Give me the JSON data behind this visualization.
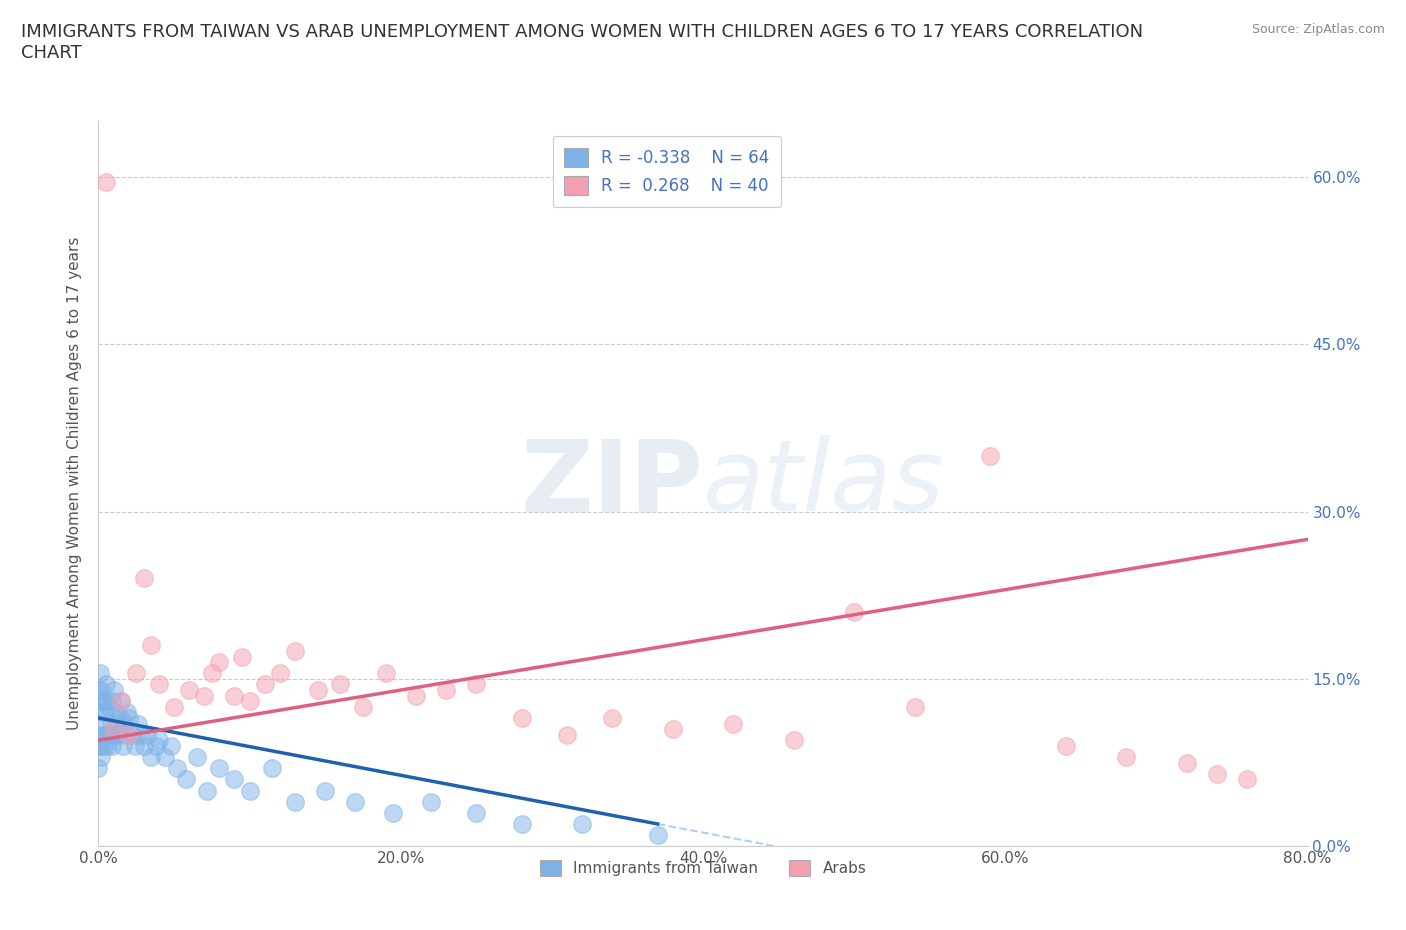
{
  "title": "IMMIGRANTS FROM TAIWAN VS ARAB UNEMPLOYMENT AMONG WOMEN WITH CHILDREN AGES 6 TO 17 YEARS CORRELATION\nCHART",
  "source": "Source: ZipAtlas.com",
  "ylabel": "Unemployment Among Women with Children Ages 6 to 17 years",
  "xlim": [
    0.0,
    0.8
  ],
  "ylim": [
    0.0,
    0.65
  ],
  "yticks": [
    0.0,
    0.15,
    0.3,
    0.45,
    0.6
  ],
  "xticks": [
    0.0,
    0.2,
    0.4,
    0.6,
    0.8
  ],
  "xtick_labels": [
    "0.0%",
    "20.0%",
    "40.0%",
    "60.0%",
    "80.0%"
  ],
  "right_ytick_labels": [
    "0.0%",
    "15.0%",
    "30.0%",
    "45.0%",
    "60.0%"
  ],
  "taiwan_color": "#7fb3e8",
  "taiwan_line_color": "#2060b0",
  "arab_color": "#f4a0b0",
  "arab_line_color": "#e06080",
  "taiwan_R": -0.338,
  "taiwan_N": 64,
  "arab_R": 0.268,
  "arab_N": 40,
  "grid_color": "#cccccc",
  "watermark_zip": "ZIP",
  "watermark_atlas": "atlas",
  "taiwan_points_x": [
    0.0,
    0.0,
    0.0,
    0.0,
    0.0,
    0.001,
    0.001,
    0.001,
    0.002,
    0.002,
    0.002,
    0.003,
    0.003,
    0.004,
    0.004,
    0.005,
    0.005,
    0.006,
    0.006,
    0.007,
    0.007,
    0.008,
    0.009,
    0.009,
    0.01,
    0.01,
    0.011,
    0.012,
    0.013,
    0.014,
    0.015,
    0.016,
    0.017,
    0.018,
    0.019,
    0.02,
    0.022,
    0.024,
    0.026,
    0.028,
    0.03,
    0.032,
    0.035,
    0.038,
    0.04,
    0.044,
    0.048,
    0.052,
    0.058,
    0.065,
    0.072,
    0.08,
    0.09,
    0.1,
    0.115,
    0.13,
    0.15,
    0.17,
    0.195,
    0.22,
    0.25,
    0.28,
    0.32,
    0.37
  ],
  "taiwan_points_y": [
    0.14,
    0.12,
    0.1,
    0.09,
    0.07,
    0.155,
    0.13,
    0.09,
    0.14,
    0.11,
    0.08,
    0.13,
    0.1,
    0.12,
    0.09,
    0.145,
    0.1,
    0.13,
    0.09,
    0.125,
    0.1,
    0.11,
    0.13,
    0.09,
    0.14,
    0.1,
    0.12,
    0.11,
    0.1,
    0.115,
    0.13,
    0.09,
    0.11,
    0.1,
    0.12,
    0.115,
    0.1,
    0.09,
    0.11,
    0.1,
    0.09,
    0.1,
    0.08,
    0.09,
    0.095,
    0.08,
    0.09,
    0.07,
    0.06,
    0.08,
    0.05,
    0.07,
    0.06,
    0.05,
    0.07,
    0.04,
    0.05,
    0.04,
    0.03,
    0.04,
    0.03,
    0.02,
    0.02,
    0.01
  ],
  "arab_points_x": [
    0.005,
    0.01,
    0.015,
    0.02,
    0.025,
    0.03,
    0.035,
    0.04,
    0.05,
    0.06,
    0.07,
    0.075,
    0.08,
    0.09,
    0.095,
    0.1,
    0.11,
    0.12,
    0.13,
    0.145,
    0.16,
    0.175,
    0.19,
    0.21,
    0.23,
    0.25,
    0.28,
    0.31,
    0.34,
    0.38,
    0.42,
    0.46,
    0.5,
    0.54,
    0.59,
    0.64,
    0.68,
    0.72,
    0.74,
    0.76
  ],
  "arab_points_y": [
    0.595,
    0.105,
    0.13,
    0.1,
    0.155,
    0.24,
    0.18,
    0.145,
    0.125,
    0.14,
    0.135,
    0.155,
    0.165,
    0.135,
    0.17,
    0.13,
    0.145,
    0.155,
    0.175,
    0.14,
    0.145,
    0.125,
    0.155,
    0.135,
    0.14,
    0.145,
    0.115,
    0.1,
    0.115,
    0.105,
    0.11,
    0.095,
    0.21,
    0.125,
    0.35,
    0.09,
    0.08,
    0.075,
    0.065,
    0.06
  ],
  "taiwan_trendline_x": [
    0.0,
    0.37
  ],
  "taiwan_trendline_y": [
    0.115,
    0.02
  ],
  "arab_trendline_x": [
    0.0,
    0.8
  ],
  "arab_trendline_y": [
    0.095,
    0.275
  ]
}
